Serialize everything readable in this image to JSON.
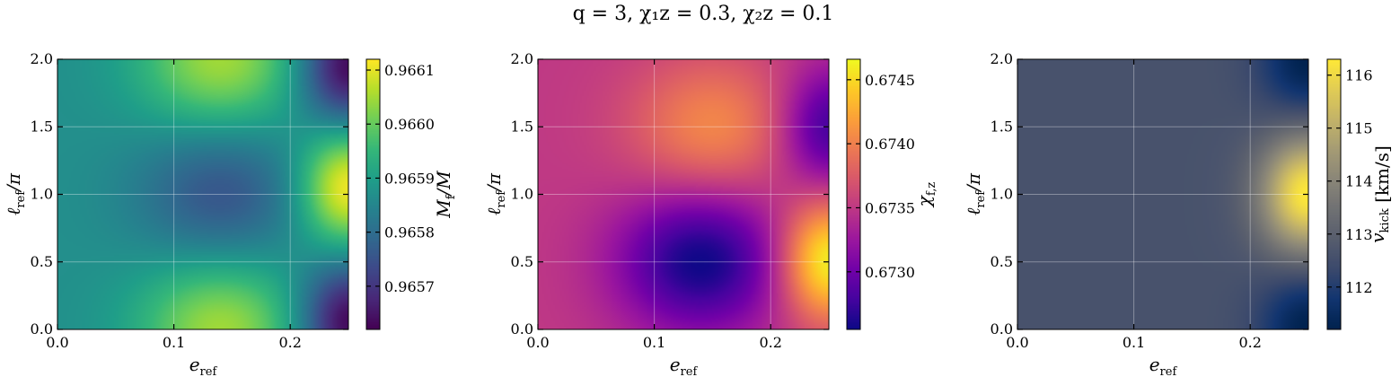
{
  "figure": {
    "title": "q = 3,  χ₁z = 0.3,  χ₂z = 0.1"
  },
  "chart_data": [
    {
      "type": "heatmap",
      "xlabel": "e_ref",
      "ylabel": "ℓ_ref/π",
      "xlim": [
        0.0,
        0.25
      ],
      "ylim": [
        0.0,
        2.0
      ],
      "xticks": [
        0.0,
        0.1,
        0.2
      ],
      "xtick_labels": [
        "0.0",
        "0.1",
        "0.2"
      ],
      "yticks": [
        0.0,
        0.5,
        1.0,
        1.5,
        2.0
      ],
      "ytick_labels": [
        "0.0",
        "0.5",
        "1.0",
        "1.5",
        "2.0"
      ],
      "grid": true,
      "colormap": "viridis",
      "colorbar": {
        "label": "M_f/M",
        "range": [
          0.96562,
          0.96612
        ],
        "ticks": [
          0.9657,
          0.9658,
          0.9659,
          0.966,
          0.9661
        ],
        "tick_labels": [
          "0.9657",
          "0.9658",
          "0.9659",
          "0.9660",
          "0.9661"
        ]
      },
      "features": [
        {
          "e_ref": 0.14,
          "l_ref_over_pi": 0.0,
          "value": 0.96605,
          "kind": "max"
        },
        {
          "e_ref": 0.14,
          "l_ref_over_pi": 2.0,
          "value": 0.96605,
          "kind": "max"
        },
        {
          "e_ref": 0.14,
          "l_ref_over_pi": 1.0,
          "value": 0.96575,
          "kind": "min"
        },
        {
          "e_ref": 0.25,
          "l_ref_over_pi": 1.05,
          "value": 0.96612,
          "kind": "max"
        },
        {
          "e_ref": 0.25,
          "l_ref_over_pi": 0.05,
          "value": 0.96562,
          "kind": "min"
        },
        {
          "e_ref": 0.25,
          "l_ref_over_pi": 1.95,
          "value": 0.96562,
          "kind": "min"
        }
      ]
    },
    {
      "type": "heatmap",
      "xlabel": "e_ref",
      "ylabel": "ℓ_ref/π",
      "xlim": [
        0.0,
        0.25
      ],
      "ylim": [
        0.0,
        2.0
      ],
      "xticks": [
        0.0,
        0.1,
        0.2
      ],
      "xtick_labels": [
        "0.0",
        "0.1",
        "0.2"
      ],
      "yticks": [
        0.0,
        0.5,
        1.0,
        1.5,
        2.0
      ],
      "ytick_labels": [
        "0.0",
        "0.5",
        "1.0",
        "1.5",
        "2.0"
      ],
      "grid": true,
      "colormap": "plasma",
      "colorbar": {
        "label": "χ_f,z",
        "range": [
          0.67255,
          0.67466
        ],
        "ticks": [
          0.673,
          0.6735,
          0.674,
          0.6745
        ],
        "tick_labels": [
          "0.6730",
          "0.6735",
          "0.6740",
          "0.6745"
        ]
      },
      "features": [
        {
          "e_ref": 0.14,
          "l_ref_over_pi": 0.5,
          "value": 0.67255,
          "kind": "min"
        },
        {
          "e_ref": 0.15,
          "l_ref_over_pi": 1.5,
          "value": 0.67405,
          "kind": "max"
        },
        {
          "e_ref": 0.25,
          "l_ref_over_pi": 0.5,
          "value": 0.67466,
          "kind": "max"
        },
        {
          "e_ref": 0.25,
          "l_ref_over_pi": 1.5,
          "value": 0.67275,
          "kind": "min"
        }
      ]
    },
    {
      "type": "heatmap",
      "xlabel": "e_ref",
      "ylabel": "ℓ_ref/π",
      "xlim": [
        0.0,
        0.25
      ],
      "ylim": [
        0.0,
        2.0
      ],
      "xticks": [
        0.0,
        0.1,
        0.2
      ],
      "xtick_labels": [
        "0.0",
        "0.1",
        "0.2"
      ],
      "yticks": [
        0.0,
        0.5,
        1.0,
        1.5,
        2.0
      ],
      "ytick_labels": [
        "0.0",
        "0.5",
        "1.0",
        "1.5",
        "2.0"
      ],
      "grid": true,
      "colormap": "cividis",
      "colorbar": {
        "label": "v_kick [km/s]",
        "range": [
          111.2,
          116.3
        ],
        "ticks": [
          112,
          113,
          114,
          115,
          116
        ],
        "tick_labels": [
          "112",
          "113",
          "114",
          "115",
          "116"
        ]
      },
      "features": [
        {
          "e_ref": 0.0,
          "l_ref_over_pi": 1.0,
          "value": 112.6,
          "kind": "baseline"
        },
        {
          "e_ref": 0.25,
          "l_ref_over_pi": 1.0,
          "value": 116.3,
          "kind": "max"
        },
        {
          "e_ref": 0.25,
          "l_ref_over_pi": 0.0,
          "value": 111.2,
          "kind": "min"
        },
        {
          "e_ref": 0.25,
          "l_ref_over_pi": 2.0,
          "value": 111.2,
          "kind": "min"
        }
      ]
    }
  ]
}
